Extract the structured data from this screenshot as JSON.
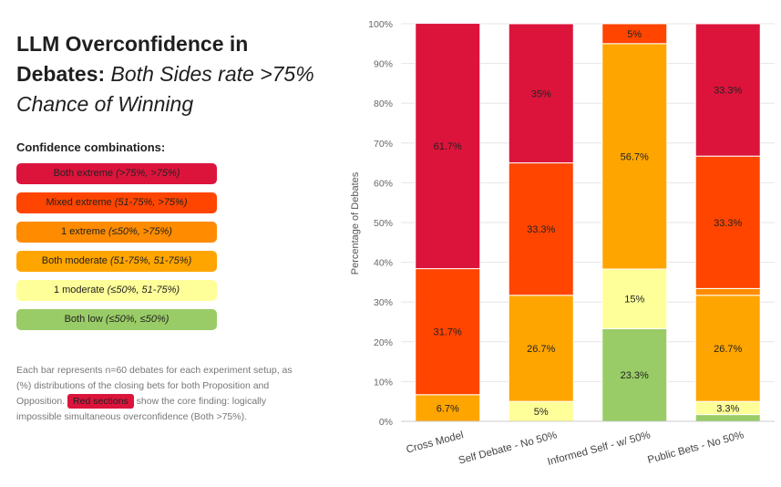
{
  "title": {
    "bold": "LLM Overconfidence in Debates:",
    "italic": "Both Sides rate >75% Chance of Winning"
  },
  "legend": {
    "heading": "Confidence combinations:",
    "items": [
      {
        "label": "Both extreme",
        "range": "(>75%, >75%)",
        "color": "#dc143c"
      },
      {
        "label": "Mixed extreme",
        "range": "(51-75%, >75%)",
        "color": "#ff4500"
      },
      {
        "label": "1 extreme",
        "range": "(≤50%, >75%)",
        "color": "#ff8c00"
      },
      {
        "label": "Both moderate",
        "range": "(51-75%, 51-75%)",
        "color": "#ffa500"
      },
      {
        "label": "1 moderate",
        "range": "(≤50%, 51-75%)",
        "color": "#ffff99"
      },
      {
        "label": "Both low",
        "range": "(≤50%, ≤50%)",
        "color": "#99cc66"
      }
    ]
  },
  "note": {
    "before": "Each bar represents n=60 debates for each experiment setup, as (%) distributions of the closing bets for both Proposition and Opposition.",
    "tag": "Red sections",
    "after": "show the core finding: logically impossible simultaneous overconfidence (Both >75%)."
  },
  "chart_data": {
    "type": "bar",
    "stacked": true,
    "ylabel": "Percentage of Debates",
    "ylim": [
      0,
      100
    ],
    "yticks": [
      "0%",
      "10%",
      "20%",
      "30%",
      "40%",
      "50%",
      "60%",
      "70%",
      "80%",
      "90%",
      "100%"
    ],
    "grid": true,
    "categories": [
      "Cross Model",
      "Self Debate - No 50%",
      "Informed Self - w/ 50%",
      "Public Bets - No 50%"
    ],
    "series": [
      {
        "name": "Both low",
        "color": "#99cc66",
        "values": [
          0,
          0,
          23.3,
          1.7
        ],
        "labels": [
          "",
          "",
          "23.3%",
          ""
        ]
      },
      {
        "name": "1 moderate",
        "color": "#ffff99",
        "values": [
          0,
          5,
          15,
          3.3
        ],
        "labels": [
          "",
          "5%",
          "15%",
          "3.3%"
        ]
      },
      {
        "name": "Both moderate",
        "color": "#ffa500",
        "values": [
          6.7,
          26.7,
          56.7,
          26.7
        ],
        "labels": [
          "6.7%",
          "26.7%",
          "56.7%",
          "26.7%"
        ]
      },
      {
        "name": "1 extreme",
        "color": "#ff8c00",
        "values": [
          0,
          0,
          0,
          1.7
        ],
        "labels": [
          "",
          "",
          "",
          ""
        ]
      },
      {
        "name": "Mixed extreme",
        "color": "#ff4500",
        "values": [
          31.7,
          33.3,
          5,
          33.3
        ],
        "labels": [
          "31.7%",
          "33.3%",
          "5%",
          "33.3%"
        ]
      },
      {
        "name": "Both extreme",
        "color": "#dc143c",
        "values": [
          61.7,
          35,
          0,
          33.3
        ],
        "labels": [
          "61.7%",
          "35%",
          "",
          "33.3%"
        ]
      }
    ]
  }
}
